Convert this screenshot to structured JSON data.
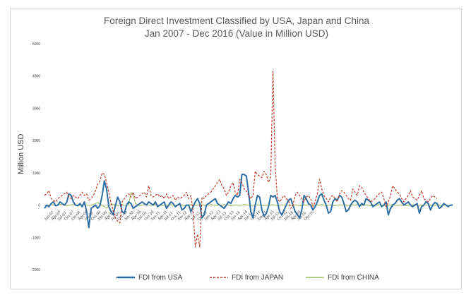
{
  "chart_data": {
    "type": "line",
    "title_lines": [
      "Foreign Direct Investment Classified by USA, Japan and China",
      "Jan 2007 - Dec 2016 (Value in Million USD)"
    ],
    "ylabel": "Million USD",
    "ylim": [
      -2000,
      5000
    ],
    "yticks": [
      5000,
      4000,
      3000,
      2000,
      1000,
      0,
      -1000,
      -2000
    ],
    "ytick_labels": [
      "5000",
      "4000",
      "3000",
      "2000",
      "1000",
      "0",
      "-1000",
      "-2000"
    ],
    "grid": false,
    "legend_position": "bottom",
    "x_start": "2007-01",
    "x_end": "2016-12",
    "xtick_labels": [
      "Jan-07",
      "Apr-07",
      "Jul-07",
      "Oct-07",
      "Jan-08",
      "Apr-08",
      "Jul-08",
      "Oct-08",
      "Jan-09",
      "Apr-09",
      "Jul-09",
      "Oct-09",
      "Jan-10",
      "Apr-10",
      "Jul-10",
      "Oct-10",
      "Jan-11",
      "Apr-11",
      "Jul-11",
      "Oct-11",
      "Jan-12",
      "Apr-12",
      "Jul-12",
      "Oct-12",
      "Jan-13",
      "Apr-13",
      "Jul-13",
      "Oct-13",
      "Jan-14",
      "Apr-14",
      "Jul-14",
      "Oct-14",
      "Jan-15",
      "Apr-15",
      "Jul-15",
      "Oct-15",
      "Jan-16",
      "Apr-16",
      "Jul-16",
      "Oct-16"
    ],
    "series": [
      {
        "name": "FDI from USA",
        "color": "#2e6da4",
        "style": "solid",
        "values": [
          -100,
          0,
          -50,
          50,
          100,
          -20,
          0,
          100,
          50,
          0,
          80,
          350,
          300,
          100,
          0,
          -20,
          50,
          -50,
          100,
          -200,
          -700,
          -100,
          -50,
          0,
          -100,
          -20,
          300,
          750,
          500,
          -50,
          -200,
          -300,
          0,
          250,
          100,
          -200,
          -250,
          0,
          100,
          50,
          -100,
          -50,
          0,
          50,
          100,
          50,
          0,
          100,
          50,
          0,
          100,
          -50,
          0,
          50,
          100,
          -100,
          0,
          100,
          50,
          -50,
          0,
          50,
          -150,
          -100,
          0,
          0,
          -200,
          -50,
          100,
          200,
          50,
          -400,
          -300,
          0,
          50,
          100,
          150,
          200,
          50,
          0,
          -50,
          -100,
          0,
          100,
          50,
          200,
          300,
          250,
          300,
          950,
          950,
          900,
          400,
          -200,
          -400,
          0,
          300,
          250,
          -150,
          -350,
          -250,
          -50,
          300,
          250,
          300,
          100,
          -200,
          -300,
          -150,
          0,
          150,
          200,
          0,
          -200,
          -300,
          -400,
          -150,
          300,
          200,
          50,
          0,
          -150,
          -50,
          100,
          300,
          350,
          150,
          0,
          -250,
          -200,
          100,
          200,
          150,
          300,
          250,
          50,
          -200,
          -150,
          0,
          100,
          150,
          100,
          -50,
          50,
          0,
          200,
          150,
          100,
          -50,
          0,
          50,
          100,
          -50,
          0,
          100,
          -300,
          -100,
          0,
          50,
          150,
          200,
          100,
          0,
          50,
          100,
          0,
          -50,
          0,
          50,
          -250,
          -50,
          0,
          100,
          50,
          -150,
          0,
          80,
          50,
          -100,
          -50,
          50,
          0,
          -50,
          0,
          0
        ]
      },
      {
        "name": "FDI from JAPAN",
        "color": "#c0392b",
        "style": "dashed",
        "values": [
          300,
          350,
          450,
          200,
          150,
          100,
          200,
          250,
          300,
          350,
          400,
          250,
          200,
          300,
          250,
          200,
          300,
          400,
          300,
          350,
          150,
          200,
          300,
          450,
          650,
          750,
          1000,
          950,
          700,
          400,
          50,
          -150,
          -400,
          -500,
          -550,
          100,
          200,
          300,
          350,
          250,
          400,
          200,
          250,
          300,
          350,
          400,
          250,
          600,
          300,
          250,
          300,
          350,
          250,
          300,
          200,
          350,
          200,
          250,
          300,
          150,
          250,
          200,
          250,
          300,
          400,
          200,
          300,
          -200,
          -1300,
          -900,
          -1300,
          250,
          200,
          300,
          350,
          400,
          500,
          600,
          700,
          800,
          600,
          500,
          300,
          400,
          600,
          700,
          400,
          300,
          800,
          700,
          500,
          450,
          300,
          200,
          300,
          1050,
          950,
          900,
          850,
          1050,
          950,
          700,
          900,
          4150,
          1200,
          200,
          100,
          200,
          300,
          200,
          150,
          -100,
          0,
          300,
          400,
          300,
          200,
          100,
          250,
          300,
          200,
          -50,
          100,
          350,
          800,
          500,
          300,
          200,
          100,
          250,
          300,
          200,
          100,
          350,
          450,
          400,
          300,
          200,
          150,
          500,
          400,
          300,
          600,
          550,
          400,
          300,
          200,
          100,
          150,
          200,
          300,
          350,
          400,
          200,
          -50,
          100,
          300,
          600,
          500,
          400,
          350,
          200,
          100,
          200,
          300,
          450,
          250,
          200,
          150,
          300,
          450,
          200,
          150,
          100,
          200,
          300,
          250,
          200
        ]
      },
      {
        "name": "FDI from CHINA",
        "color": "#9bbb59",
        "style": "solid",
        "values": [
          0,
          -20,
          0,
          20,
          10,
          -10,
          0,
          20,
          30,
          0,
          -20,
          0,
          10,
          20,
          0,
          -10,
          0,
          10,
          20,
          0,
          -10,
          0,
          20,
          50,
          80,
          20,
          0,
          -50,
          -100,
          0,
          20,
          30,
          0,
          -20,
          0,
          10,
          0,
          -10,
          20,
          400,
          300,
          50,
          0,
          -20,
          0,
          20,
          10,
          0,
          -10,
          0,
          20,
          10,
          0,
          -20,
          0,
          10,
          0,
          20,
          0,
          -10,
          0,
          10,
          0,
          -20,
          0,
          10,
          20,
          0,
          -10,
          0,
          20,
          10,
          0,
          -10,
          0,
          20,
          0,
          -10,
          0,
          10,
          0,
          20,
          10,
          0,
          -20,
          0,
          10,
          0,
          -10,
          0,
          20,
          10,
          0,
          0,
          -10,
          20,
          0,
          10,
          0,
          -20,
          0,
          10,
          0,
          20,
          0,
          -10,
          0,
          10,
          0,
          20,
          0,
          -10,
          0,
          10,
          0,
          -20,
          0,
          10,
          0,
          20,
          0,
          -10,
          0,
          10,
          0,
          20,
          0,
          -10,
          0,
          10,
          0,
          -20,
          0,
          10,
          0,
          20,
          0,
          -10,
          0,
          10,
          0,
          20,
          0,
          -10,
          0,
          10,
          0,
          -20,
          0,
          10,
          0,
          20,
          0,
          -10,
          0,
          10,
          0,
          20,
          0,
          -10,
          0,
          10,
          0,
          -20,
          0,
          10,
          0,
          20,
          0,
          -10,
          0,
          10,
          0,
          20,
          0,
          -10,
          0,
          10,
          0,
          -20,
          0,
          10,
          0
        ]
      }
    ]
  }
}
